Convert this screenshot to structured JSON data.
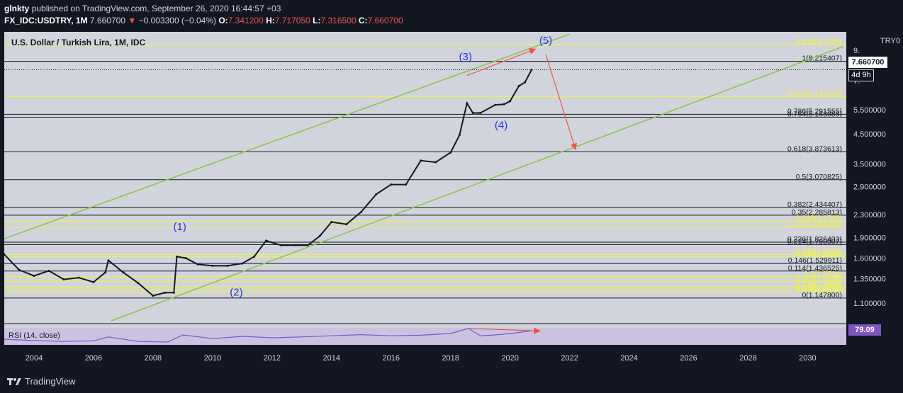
{
  "header": {
    "publisher": "glnkty",
    "published_text": "published on TradingView.com, September 26, 2020 16:44:57 +03",
    "symbol": "FX_IDC:USDTRY, 1M",
    "last": "7.660700",
    "change": "−0.003300 (−0.04%)",
    "o_label": "O:",
    "o": "7.341200",
    "h_label": "H:",
    "h": "7.717050",
    "l_label": "L:",
    "l": "7.316500",
    "c_label": "C:",
    "c": "7.660700"
  },
  "title": "U.S. Dollar / Turkish Lira, 1M, IDC",
  "axis": {
    "currency": "TRY",
    "scale_mode": "0",
    "last_price": "7.660700",
    "countdown": "4d 9h",
    "rsi_value": "79.09"
  },
  "rsi_title": "RSI (14, close)",
  "footer": {
    "brand": "TradingView"
  },
  "chart_data": {
    "type": "line",
    "title": "U.S. Dollar / Turkish Lira, 1M, IDC",
    "ylabel": "TRY",
    "xlabel": "",
    "yscale": "log",
    "ylim": [
      0.95,
      10.5
    ],
    "xlim": [
      2003.0,
      2031.3
    ],
    "price_ticks": [
      "9.",
      "7.",
      "5.500000",
      "4.500000",
      "3.500000",
      "2.900000",
      "2.300000",
      "1.900000",
      "1.600000",
      "1.350000",
      "1.100000"
    ],
    "price_tick_values": [
      9.0,
      7.0,
      5.5,
      4.5,
      3.5,
      2.9,
      2.3,
      1.9,
      1.6,
      1.35,
      1.1
    ],
    "time_ticks": [
      "2004",
      "2006",
      "2008",
      "2010",
      "2012",
      "2014",
      "2016",
      "2018",
      "2020",
      "2022",
      "2024",
      "2026",
      "2028",
      "2030"
    ],
    "time_tick_values": [
      2004,
      2006,
      2008,
      2010,
      2012,
      2014,
      2016,
      2018,
      2020,
      2022,
      2024,
      2026,
      2028,
      2030
    ],
    "series": [
      {
        "name": "USDTRY close",
        "x": [
          2003.0,
          2003.5,
          2004.0,
          2004.5,
          2005.0,
          2005.5,
          2006.0,
          2006.4,
          2006.5,
          2007.0,
          2007.5,
          2008.0,
          2008.4,
          2008.7,
          2008.8,
          2009.1,
          2009.5,
          2010.0,
          2010.5,
          2011.0,
          2011.4,
          2011.8,
          2012.3,
          2012.8,
          2013.2,
          2013.6,
          2014.0,
          2014.5,
          2015.0,
          2015.5,
          2016.0,
          2016.5,
          2017.0,
          2017.5,
          2018.0,
          2018.3,
          2018.55,
          2018.75,
          2019.0,
          2019.5,
          2019.8,
          2020.0,
          2020.3,
          2020.5,
          2020.72
        ],
        "values": [
          1.65,
          1.45,
          1.38,
          1.44,
          1.34,
          1.36,
          1.31,
          1.42,
          1.57,
          1.42,
          1.3,
          1.17,
          1.2,
          1.2,
          1.62,
          1.6,
          1.52,
          1.5,
          1.5,
          1.53,
          1.62,
          1.85,
          1.78,
          1.78,
          1.78,
          1.92,
          2.16,
          2.12,
          2.35,
          2.72,
          2.95,
          2.95,
          3.6,
          3.55,
          3.85,
          4.45,
          5.8,
          5.35,
          5.35,
          5.72,
          5.75,
          5.9,
          6.7,
          6.9,
          7.66
        ]
      }
    ],
    "fib_levels": [
      {
        "label": "4.618(9.4555)",
        "value": 9.4555,
        "color": "#f5f53a"
      },
      {
        "label": "1(8.215407)",
        "value": 8.215407,
        "color": "#131722"
      },
      {
        "label": "3.618(6.132508)",
        "value": 6.132508,
        "color": "#f5f53a"
      },
      {
        "label": "0.786(5.291555)",
        "value": 5.291555,
        "color": "#131722"
      },
      {
        "label": "0.764(5.163089)",
        "value": 5.163089,
        "color": "#131722"
      },
      {
        "label": "0.618(3.873613)",
        "value": 3.873613,
        "color": "#131722"
      },
      {
        "label": "0.5(3.070825)",
        "value": 3.070825,
        "color": "#131722"
      },
      {
        "label": "0.382(2.434407)",
        "value": 2.434407,
        "color": "#131722"
      },
      {
        "label": "0.35(2.285813)",
        "value": 2.285813,
        "color": "#131722"
      },
      {
        "label": "1.618(2.1762)",
        "value": 2.1762,
        "color": "#f5f53a"
      },
      {
        "label": "1.272(2.068898)",
        "value": 2.068898,
        "color": "#f5f53a"
      },
      {
        "label": "0.236(1.826403)",
        "value": 1.826403,
        "color": "#131722"
      },
      {
        "label": "0.214(1.790007)",
        "value": 1.790007,
        "color": "#131722"
      },
      {
        "label": "0.786(1.6502)",
        "value": 1.6502,
        "color": "#f5f53a"
      },
      {
        "label": "0.618(1.6213)",
        "value": 1.6213,
        "color": "#f5f53a"
      },
      {
        "label": "0.146(1.529911)",
        "value": 1.529911,
        "color": "#131722"
      },
      {
        "label": "0.114(1.436525)",
        "value": 1.436525,
        "color": "#131722"
      },
      {
        "label": "0.5(1.3704)",
        "value": 1.3704,
        "color": "#f5f53a"
      },
      {
        "label": "0.382(1.3206)",
        "value": 1.3206,
        "color": "#f5f53a"
      },
      {
        "label": "0.236(1.2604)",
        "value": 1.2604,
        "color": "#f5f53a"
      },
      {
        "label": "0.146(1.2291)",
        "value": 1.2291,
        "color": "#f5f53a"
      },
      {
        "label": "0.114(1.2070)",
        "value": 1.207,
        "color": "#f5f53a"
      },
      {
        "label": "0(1.147800)",
        "value": 1.1478,
        "color": "#131722"
      }
    ],
    "channel_lines": [
      {
        "name": "upper",
        "x1": 2003.0,
        "y1": 1.88,
        "x2": 2022.0,
        "y2": 10.3
      },
      {
        "name": "lower",
        "x1": 2006.6,
        "y1": 0.95,
        "x2": 2031.2,
        "y2": 9.3
      }
    ],
    "wave_labels": [
      {
        "text": "(1)",
        "x": 2008.9,
        "y": 2.02
      },
      {
        "text": "(2)",
        "x": 2010.8,
        "y": 1.17
      },
      {
        "text": "(3)",
        "x": 2018.5,
        "y": 8.3
      },
      {
        "text": "(4)",
        "x": 2019.7,
        "y": 4.7
      },
      {
        "text": "(5)",
        "x": 2021.2,
        "y": 9.5
      }
    ],
    "arrows": [
      {
        "name": "divergence-price",
        "x1": 2018.55,
        "y1": 7.3,
        "x2": 2020.85,
        "y2": 9.1
      },
      {
        "name": "projection",
        "x1": 2021.2,
        "y1": 8.7,
        "x2": 2022.2,
        "y2": 3.95
      }
    ],
    "rsi": {
      "title": "RSI (14, close)",
      "last": 79.09,
      "x": [
        2003.0,
        2004.0,
        2005.0,
        2006.0,
        2006.5,
        2007.5,
        2008.5,
        2009.0,
        2010.0,
        2011.0,
        2012.0,
        2013.0,
        2014.0,
        2015.0,
        2016.0,
        2017.0,
        2018.0,
        2018.6,
        2019.0,
        2019.5,
        2020.0,
        2020.7
      ],
      "values": [
        50,
        45,
        42,
        44,
        58,
        42,
        40,
        65,
        52,
        60,
        55,
        58,
        62,
        66,
        62,
        64,
        70,
        88,
        62,
        65,
        70,
        79
      ]
    }
  }
}
